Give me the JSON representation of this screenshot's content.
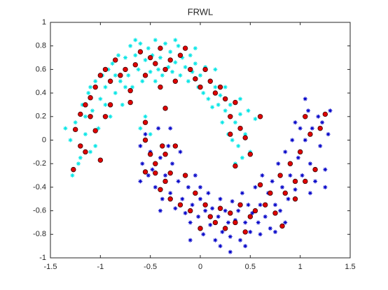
{
  "chart_data": {
    "type": "scatter",
    "title": "FRWL",
    "xlim": [
      -1.5,
      1.5
    ],
    "xticks": [
      -1.5,
      -1,
      -0.5,
      0,
      0.5,
      1,
      1.5
    ],
    "ylim": [
      -1,
      1
    ],
    "yticks": [
      -1,
      -0.8,
      -0.6,
      -0.4,
      -0.2,
      0,
      0.2,
      0.4,
      0.6,
      0.8,
      1
    ],
    "grid": false,
    "series": [
      {
        "color": "#00e5e5",
        "marker": "asterisk",
        "points": [
          [
            -1.3,
            0.0
          ],
          [
            -1.25,
            0.15
          ],
          [
            -1.22,
            -0.2
          ],
          [
            -1.18,
            0.3
          ],
          [
            -1.15,
            0.05
          ],
          [
            -1.12,
            0.4
          ],
          [
            -1.1,
            -0.1
          ],
          [
            -1.08,
            0.25
          ],
          [
            -1.05,
            0.5
          ],
          [
            -1.02,
            0.1
          ],
          [
            -1.0,
            0.35
          ],
          [
            -0.98,
            0.55
          ],
          [
            -0.95,
            0.45
          ],
          [
            -0.92,
            0.6
          ],
          [
            -0.9,
            0.2
          ],
          [
            -0.88,
            0.65
          ],
          [
            -0.85,
            0.4
          ],
          [
            -0.82,
            0.72
          ],
          [
            -0.8,
            0.5
          ],
          [
            -0.78,
            0.3
          ],
          [
            -0.75,
            0.7
          ],
          [
            -0.72,
            0.55
          ],
          [
            -0.7,
            0.8
          ],
          [
            -0.68,
            0.45
          ],
          [
            -0.65,
            0.72
          ],
          [
            -0.62,
            0.6
          ],
          [
            -0.6,
            0.82
          ],
          [
            -0.58,
            0.5
          ],
          [
            -0.55,
            0.68
          ],
          [
            -0.52,
            0.78
          ],
          [
            -0.5,
            0.58
          ],
          [
            -0.48,
            0.72
          ],
          [
            -0.45,
            0.85
          ],
          [
            -0.42,
            0.6
          ],
          [
            -0.4,
            0.7
          ],
          [
            -0.38,
            0.55
          ],
          [
            -0.35,
            0.82
          ],
          [
            -0.32,
            0.62
          ],
          [
            -0.3,
            0.75
          ],
          [
            -0.28,
            0.58
          ],
          [
            -0.25,
            0.66
          ],
          [
            -0.22,
            0.8
          ],
          [
            -0.2,
            0.55
          ],
          [
            -0.18,
            0.7
          ],
          [
            -0.15,
            0.62
          ],
          [
            -0.12,
            0.5
          ],
          [
            -0.1,
            0.72
          ],
          [
            -0.08,
            0.58
          ],
          [
            -0.05,
            0.65
          ],
          [
            -0.02,
            0.45
          ],
          [
            0.0,
            0.55
          ],
          [
            0.03,
            0.4
          ],
          [
            0.05,
            0.62
          ],
          [
            0.08,
            0.35
          ],
          [
            0.1,
            0.5
          ],
          [
            0.12,
            0.28
          ],
          [
            0.15,
            0.45
          ],
          [
            0.18,
            0.3
          ],
          [
            0.2,
            0.38
          ],
          [
            0.22,
            0.15
          ],
          [
            0.25,
            0.25
          ],
          [
            0.28,
            0.05
          ],
          [
            0.3,
            0.3
          ],
          [
            0.32,
            0.0
          ],
          [
            0.35,
            0.15
          ],
          [
            0.38,
            -0.05
          ],
          [
            0.4,
            0.22
          ],
          [
            0.42,
            -0.15
          ],
          [
            0.45,
            0.05
          ],
          [
            0.5,
            -0.1
          ],
          [
            0.55,
            0.18
          ],
          [
            -1.35,
            0.1
          ],
          [
            -1.28,
            -0.3
          ],
          [
            -1.2,
            -0.15
          ],
          [
            -1.1,
            0.45
          ],
          [
            -0.6,
            0.1
          ],
          [
            -0.55,
            0.2
          ],
          [
            -0.5,
            0.05
          ],
          [
            -1.15,
            0.2
          ],
          [
            -1.05,
            -0.05
          ],
          [
            -0.95,
            0.3
          ],
          [
            -0.85,
            0.55
          ],
          [
            -0.75,
            0.45
          ],
          [
            -0.65,
            0.85
          ],
          [
            -0.45,
            0.5
          ],
          [
            -0.25,
            0.85
          ],
          [
            -0.05,
            0.78
          ],
          [
            0.15,
            0.6
          ],
          [
            0.25,
            0.45
          ],
          [
            0.4,
            0.35
          ],
          [
            0.35,
            -0.2
          ],
          [
            0.48,
            0.25
          ]
        ]
      },
      {
        "color": "#0000c8",
        "marker": "asterisk",
        "points": [
          [
            -0.6,
            -0.05
          ],
          [
            -0.58,
            -0.2
          ],
          [
            -0.55,
            0.05
          ],
          [
            -0.52,
            -0.3
          ],
          [
            -0.5,
            -0.1
          ],
          [
            -0.48,
            -0.25
          ],
          [
            -0.45,
            -0.4
          ],
          [
            -0.42,
            0.1
          ],
          [
            -0.4,
            -0.15
          ],
          [
            -0.38,
            -0.5
          ],
          [
            -0.35,
            -0.3
          ],
          [
            -0.32,
            -0.05
          ],
          [
            -0.3,
            -0.45
          ],
          [
            -0.28,
            -0.2
          ],
          [
            -0.25,
            -0.58
          ],
          [
            -0.22,
            -0.35
          ],
          [
            -0.2,
            -0.1
          ],
          [
            -0.18,
            -0.5
          ],
          [
            -0.15,
            -0.62
          ],
          [
            -0.12,
            -0.4
          ],
          [
            -0.1,
            -0.7
          ],
          [
            -0.08,
            -0.55
          ],
          [
            -0.05,
            -0.3
          ],
          [
            -0.02,
            -0.65
          ],
          [
            0.0,
            -0.5
          ],
          [
            0.03,
            -0.8
          ],
          [
            0.05,
            -0.6
          ],
          [
            0.08,
            -0.45
          ],
          [
            0.1,
            -0.72
          ],
          [
            0.12,
            -0.58
          ],
          [
            0.15,
            -0.85
          ],
          [
            0.18,
            -0.65
          ],
          [
            0.2,
            -0.5
          ],
          [
            0.22,
            -0.78
          ],
          [
            0.25,
            -0.6
          ],
          [
            0.28,
            -0.7
          ],
          [
            0.3,
            -0.82
          ],
          [
            0.32,
            -0.52
          ],
          [
            0.35,
            -0.68
          ],
          [
            0.38,
            -0.6
          ],
          [
            0.4,
            -0.85
          ],
          [
            0.42,
            -0.45
          ],
          [
            0.45,
            -0.7
          ],
          [
            0.48,
            -0.55
          ],
          [
            0.5,
            -0.78
          ],
          [
            0.52,
            -0.62
          ],
          [
            0.55,
            -0.4
          ],
          [
            0.58,
            -0.7
          ],
          [
            0.6,
            -0.55
          ],
          [
            0.62,
            -0.3
          ],
          [
            0.65,
            -0.65
          ],
          [
            0.68,
            -0.45
          ],
          [
            0.7,
            -0.75
          ],
          [
            0.72,
            -0.35
          ],
          [
            0.75,
            -0.55
          ],
          [
            0.78,
            -0.2
          ],
          [
            0.8,
            -0.6
          ],
          [
            0.82,
            -0.4
          ],
          [
            0.85,
            -0.1
          ],
          [
            0.88,
            -0.5
          ],
          [
            0.9,
            -0.3
          ],
          [
            0.92,
            0.0
          ],
          [
            0.95,
            -0.42
          ],
          [
            0.98,
            -0.15
          ],
          [
            1.0,
            0.1
          ],
          [
            1.02,
            -0.3
          ],
          [
            1.05,
            0.0
          ],
          [
            1.08,
            0.25
          ],
          [
            1.1,
            -0.2
          ],
          [
            1.12,
            0.1
          ],
          [
            1.15,
            -0.35
          ],
          [
            1.18,
            0.2
          ],
          [
            1.2,
            -0.05
          ],
          [
            1.22,
            0.15
          ],
          [
            1.25,
            -0.25
          ],
          [
            1.28,
            0.05
          ],
          [
            1.3,
            0.25
          ],
          [
            1.05,
            0.35
          ],
          [
            0.95,
            0.15
          ],
          [
            0.6,
            -0.8
          ],
          [
            0.3,
            -0.95
          ],
          [
            -0.1,
            -0.85
          ],
          [
            -0.4,
            -0.6
          ],
          [
            -0.6,
            -0.35
          ],
          [
            -0.3,
            0.1
          ],
          [
            0.0,
            -0.4
          ],
          [
            0.2,
            -0.9
          ],
          [
            0.45,
            -0.9
          ],
          [
            0.75,
            -0.78
          ],
          [
            1.1,
            -0.45
          ],
          [
            1.25,
            -0.4
          ],
          [
            0.85,
            -0.7
          ]
        ]
      },
      {
        "color": "#e00000",
        "marker": "circle",
        "points": [
          [
            -1.25,
            0.09
          ],
          [
            -1.2,
            0.22
          ],
          [
            -1.15,
            0.3
          ],
          [
            -1.1,
            0.36
          ],
          [
            -1.05,
            0.45
          ],
          [
            -1.0,
            0.55
          ],
          [
            -0.95,
            0.6
          ],
          [
            -0.9,
            0.5
          ],
          [
            -0.85,
            0.68
          ],
          [
            -0.8,
            0.55
          ],
          [
            -0.75,
            0.6
          ],
          [
            -0.7,
            0.42
          ],
          [
            -0.65,
            0.64
          ],
          [
            -0.6,
            0.75
          ],
          [
            -0.55,
            0.55
          ],
          [
            -0.5,
            0.7
          ],
          [
            -0.45,
            0.65
          ],
          [
            -0.4,
            0.78
          ],
          [
            -0.35,
            0.6
          ],
          [
            -0.3,
            0.68
          ],
          [
            -0.25,
            0.5
          ],
          [
            -0.2,
            0.72
          ],
          [
            -0.15,
            0.78
          ],
          [
            -0.1,
            0.6
          ],
          [
            -0.05,
            0.52
          ],
          [
            0.0,
            0.45
          ],
          [
            0.05,
            0.6
          ],
          [
            0.1,
            0.5
          ],
          [
            0.15,
            0.4
          ],
          [
            0.2,
            0.45
          ],
          [
            0.25,
            0.35
          ],
          [
            0.3,
            0.2
          ],
          [
            0.35,
            0.32
          ],
          [
            0.4,
            0.1
          ],
          [
            0.45,
            0.02
          ],
          [
            0.5,
            -0.12
          ],
          [
            0.35,
            -0.22
          ],
          [
            0.6,
            0.2
          ],
          [
            0.3,
            0.05
          ],
          [
            -1.2,
            -0.05
          ],
          [
            -1.27,
            -0.25
          ],
          [
            -1.15,
            -0.1
          ],
          [
            -1.0,
            -0.17
          ],
          [
            -1.1,
            0.2
          ],
          [
            -1.05,
            0.08
          ],
          [
            -0.95,
            0.2
          ],
          [
            -0.9,
            0.3
          ],
          [
            -0.7,
            0.32
          ],
          [
            -0.4,
            0.45
          ],
          [
            -0.35,
            0.27
          ],
          [
            -0.55,
            0.15
          ],
          [
            -0.55,
            0.0
          ],
          [
            -0.55,
            -0.27
          ],
          [
            -0.5,
            -0.12
          ],
          [
            -0.45,
            -0.2
          ],
          [
            -0.4,
            -0.42
          ],
          [
            -0.35,
            -0.35
          ],
          [
            -0.3,
            -0.5
          ],
          [
            -0.25,
            -0.05
          ],
          [
            -0.2,
            -0.55
          ],
          [
            -0.15,
            -0.3
          ],
          [
            -0.1,
            -0.6
          ],
          [
            -0.05,
            -0.45
          ],
          [
            0.0,
            -0.75
          ],
          [
            0.05,
            -0.55
          ],
          [
            0.1,
            -0.65
          ],
          [
            0.15,
            -0.7
          ],
          [
            0.2,
            -0.58
          ],
          [
            0.25,
            -0.75
          ],
          [
            0.3,
            -0.62
          ],
          [
            0.35,
            -0.7
          ],
          [
            0.4,
            -0.55
          ],
          [
            0.45,
            -0.78
          ],
          [
            0.5,
            -0.65
          ],
          [
            0.55,
            -0.6
          ],
          [
            0.6,
            -0.38
          ],
          [
            0.65,
            -0.55
          ],
          [
            0.7,
            -0.45
          ],
          [
            0.75,
            -0.62
          ],
          [
            0.8,
            -0.3
          ],
          [
            0.82,
            -0.73
          ],
          [
            0.85,
            -0.45
          ],
          [
            0.9,
            -0.2
          ],
          [
            0.95,
            -0.35
          ],
          [
            1.0,
            -0.1
          ],
          [
            1.05,
            0.2
          ],
          [
            1.1,
            0.05
          ],
          [
            1.15,
            -0.25
          ],
          [
            1.2,
            0.1
          ],
          [
            1.25,
            0.22
          ],
          [
            1.05,
            -0.35
          ],
          [
            0.95,
            -0.5
          ],
          [
            -0.35,
            -0.12
          ],
          [
            -0.45,
            -0.28
          ],
          [
            -0.38,
            -0.05
          ],
          [
            -0.3,
            -0.28
          ]
        ]
      }
    ]
  }
}
